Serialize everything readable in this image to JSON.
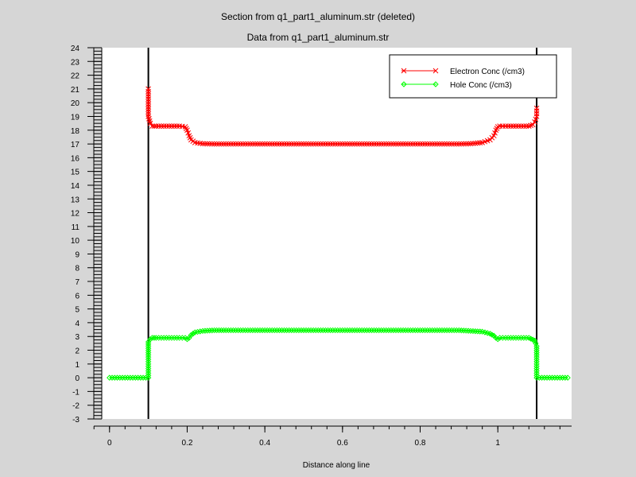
{
  "titles": {
    "main": "Section from q1_part1_aluminum.str (deleted)",
    "sub": "Data from q1_part1_aluminum.str"
  },
  "colors": {
    "background": "#d6d6d6",
    "plot_background": "#ffffff",
    "electron": "#ff0000",
    "hole": "#00ff00",
    "axis": "#000000"
  },
  "chart_data": {
    "type": "line",
    "xlabel": "Distance along line",
    "ylabel": "",
    "xlim": [
      -0.02,
      1.19
    ],
    "ylim": [
      -3,
      24
    ],
    "xticks": [
      0,
      0.2,
      0.4,
      0.6,
      0.8,
      1
    ],
    "xtick_labels": [
      "0",
      "0.2",
      "0.4",
      "0.6",
      "0.8",
      "1"
    ],
    "yticks": [
      -3,
      -2,
      -1,
      0,
      1,
      2,
      3,
      4,
      5,
      6,
      7,
      8,
      9,
      10,
      11,
      12,
      13,
      14,
      15,
      16,
      17,
      18,
      19,
      20,
      21,
      22,
      23,
      24
    ],
    "yticks_labels": [
      "-3",
      "-2",
      "-1",
      "0",
      "1",
      "2",
      "3",
      "4",
      "5",
      "6",
      "7",
      "8",
      "9",
      "10",
      "11",
      "12",
      "13",
      "14",
      "15",
      "16",
      "17",
      "18",
      "19",
      "20",
      "21",
      "22",
      "23",
      "24"
    ],
    "vertical_lines_x": [
      0.1,
      1.1
    ],
    "legend_placement": "top-right",
    "series": [
      {
        "name": "Electron Conc (/cm3)",
        "marker": "x",
        "color": "#ff0000",
        "x": [
          0.1,
          0.1,
          0.1,
          0.105,
          0.11,
          0.12,
          0.14,
          0.16,
          0.18,
          0.195,
          0.2,
          0.205,
          0.21,
          0.22,
          0.24,
          0.27,
          0.3,
          0.4,
          0.5,
          0.6,
          0.7,
          0.8,
          0.9,
          0.93,
          0.96,
          0.98,
          0.99,
          0.995,
          1.0,
          1.005,
          1.02,
          1.04,
          1.06,
          1.08,
          1.09,
          1.095,
          1.1,
          1.1
        ],
        "y": [
          21.0,
          19.7,
          19.0,
          18.5,
          18.3,
          18.3,
          18.3,
          18.3,
          18.3,
          18.25,
          18.0,
          17.6,
          17.3,
          17.1,
          17.02,
          17.0,
          17.0,
          17.0,
          17.0,
          17.0,
          17.0,
          17.0,
          17.0,
          17.02,
          17.1,
          17.3,
          17.6,
          18.0,
          18.25,
          18.3,
          18.3,
          18.3,
          18.3,
          18.3,
          18.4,
          18.6,
          19.0,
          19.6
        ]
      },
      {
        "name": "Hole Conc (/cm3)",
        "marker": "diamond",
        "color": "#00ff00",
        "x": [
          0.0,
          0.02,
          0.04,
          0.06,
          0.08,
          0.1,
          0.1,
          0.1,
          0.1,
          0.105,
          0.11,
          0.12,
          0.14,
          0.16,
          0.18,
          0.195,
          0.2,
          0.205,
          0.21,
          0.22,
          0.24,
          0.27,
          0.3,
          0.4,
          0.5,
          0.6,
          0.7,
          0.8,
          0.9,
          0.93,
          0.96,
          0.98,
          0.99,
          0.995,
          1.0,
          1.005,
          1.02,
          1.04,
          1.06,
          1.08,
          1.095,
          1.1,
          1.1,
          1.1,
          1.12,
          1.14,
          1.16,
          1.18
        ],
        "y": [
          0.0,
          0.0,
          0.0,
          0.0,
          0.0,
          0.0,
          1.5,
          2.3,
          2.6,
          2.8,
          2.9,
          2.9,
          2.9,
          2.9,
          2.9,
          2.9,
          2.8,
          2.9,
          3.1,
          3.3,
          3.4,
          3.45,
          3.45,
          3.45,
          3.45,
          3.45,
          3.45,
          3.45,
          3.45,
          3.4,
          3.35,
          3.2,
          3.05,
          2.9,
          2.8,
          2.9,
          2.9,
          2.9,
          2.9,
          2.9,
          2.7,
          2.3,
          1.5,
          0.0,
          0.0,
          0.0,
          0.0,
          0.0
        ]
      }
    ]
  }
}
